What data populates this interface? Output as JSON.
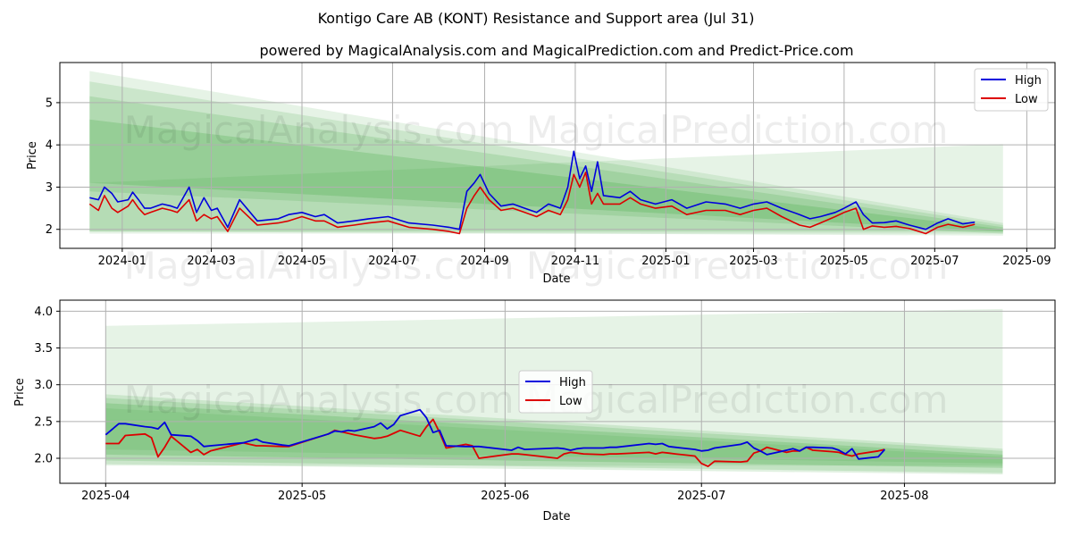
{
  "title": "Kontigo Care AB (KONT) Resistance and Support area (Jul 31)",
  "subtitle": "powered by MagicalAnalysis.com and MagicalPrediction.com and Predict-Price.com",
  "watermark": "MagicalAnalysis.com    MagicalPrediction.com",
  "colors": {
    "high": "#0000dd",
    "low": "#dd0000",
    "band": "#2e9e2e",
    "grid": "#b0b0b0"
  },
  "chart_data": [
    {
      "type": "line",
      "xlabel": "Date",
      "ylabel": "Price",
      "xlim": [
        "2023-11-20",
        "2025-09-20"
      ],
      "ylim": [
        1.55,
        5.95
      ],
      "xticks": [
        "2024-01",
        "2024-03",
        "2024-05",
        "2024-07",
        "2024-09",
        "2024-11",
        "2025-01",
        "2025-03",
        "2025-05",
        "2025-07",
        "2025-09"
      ],
      "yticks": [
        2,
        3,
        4,
        5
      ],
      "grid": true,
      "legend_position": "upper right",
      "bands": [
        {
          "x": [
            "2023-12-10",
            "2025-08-16"
          ],
          "upper": [
            5.75,
            2.15
          ],
          "lower": [
            1.95,
            1.85
          ]
        },
        {
          "x": [
            "2023-12-10",
            "2025-08-16"
          ],
          "upper": [
            5.5,
            2.1
          ],
          "lower": [
            2.9,
            1.9
          ]
        },
        {
          "x": [
            "2023-12-10",
            "2025-08-16"
          ],
          "upper": [
            5.15,
            2.05
          ],
          "lower": [
            1.95,
            1.95
          ]
        },
        {
          "x": [
            "2023-12-10",
            "2025-08-16"
          ],
          "upper": [
            4.6,
            2.0
          ],
          "lower": [
            3.1,
            1.95
          ]
        },
        {
          "x": [
            "2023-12-10",
            "2025-08-16"
          ],
          "upper": [
            3.1,
            4.02
          ],
          "lower": [
            1.9,
            1.9
          ]
        }
      ],
      "series": [
        {
          "name": "High",
          "x": [
            "2023-12-10",
            "2023-12-16",
            "2023-12-20",
            "2023-12-25",
            "2023-12-29",
            "2024-01-05",
            "2024-01-08",
            "2024-01-12",
            "2024-01-16",
            "2024-01-20",
            "2024-01-28",
            "2024-02-03",
            "2024-02-07",
            "2024-02-15",
            "2024-02-20",
            "2024-02-25",
            "2024-03-01",
            "2024-03-05",
            "2024-03-12",
            "2024-03-20",
            "2024-04-01",
            "2024-04-15",
            "2024-04-22",
            "2024-05-01",
            "2024-05-10",
            "2024-05-16",
            "2024-05-25",
            "2024-06-05",
            "2024-06-15",
            "2024-06-28",
            "2024-07-12",
            "2024-07-28",
            "2024-08-08",
            "2024-08-15",
            "2024-08-20",
            "2024-08-25",
            "2024-08-29",
            "2024-09-04",
            "2024-09-12",
            "2024-09-20",
            "2024-09-28",
            "2024-10-06",
            "2024-10-14",
            "2024-10-22",
            "2024-10-27",
            "2024-10-31",
            "2024-11-04",
            "2024-11-08",
            "2024-11-12",
            "2024-11-16",
            "2024-11-20",
            "2024-12-01",
            "2024-12-08",
            "2024-12-15",
            "2024-12-25",
            "2025-01-05",
            "2025-01-15",
            "2025-01-28",
            "2025-02-10",
            "2025-02-20",
            "2025-03-01",
            "2025-03-10",
            "2025-03-20",
            "2025-04-01",
            "2025-04-08",
            "2025-04-15",
            "2025-04-25",
            "2025-05-01",
            "2025-05-09",
            "2025-05-14",
            "2025-05-20",
            "2025-05-28",
            "2025-06-05",
            "2025-06-14",
            "2025-06-25",
            "2025-07-03",
            "2025-07-10",
            "2025-07-20",
            "2025-07-28"
          ],
          "y": [
            2.75,
            2.7,
            3.0,
            2.85,
            2.65,
            2.7,
            2.88,
            2.7,
            2.5,
            2.5,
            2.6,
            2.55,
            2.5,
            3.0,
            2.4,
            2.75,
            2.45,
            2.5,
            2.05,
            2.7,
            2.2,
            2.25,
            2.35,
            2.4,
            2.3,
            2.35,
            2.15,
            2.2,
            2.25,
            2.3,
            2.15,
            2.1,
            2.05,
            2.0,
            2.9,
            3.1,
            3.3,
            2.85,
            2.55,
            2.6,
            2.5,
            2.4,
            2.6,
            2.5,
            3.0,
            3.85,
            3.2,
            3.5,
            2.9,
            3.6,
            2.8,
            2.75,
            2.9,
            2.7,
            2.6,
            2.7,
            2.5,
            2.65,
            2.6,
            2.5,
            2.6,
            2.65,
            2.5,
            2.35,
            2.25,
            2.3,
            2.4,
            2.5,
            2.65,
            2.35,
            2.15,
            2.16,
            2.2,
            2.1,
            2.0,
            2.15,
            2.25,
            2.13,
            2.17
          ]
        },
        {
          "name": "Low",
          "x": [
            "2023-12-10",
            "2023-12-16",
            "2023-12-20",
            "2023-12-25",
            "2023-12-29",
            "2024-01-05",
            "2024-01-08",
            "2024-01-12",
            "2024-01-16",
            "2024-01-20",
            "2024-01-28",
            "2024-02-03",
            "2024-02-07",
            "2024-02-15",
            "2024-02-20",
            "2024-02-25",
            "2024-03-01",
            "2024-03-05",
            "2024-03-12",
            "2024-03-20",
            "2024-04-01",
            "2024-04-15",
            "2024-04-22",
            "2024-05-01",
            "2024-05-10",
            "2024-05-16",
            "2024-05-25",
            "2024-06-05",
            "2024-06-15",
            "2024-06-28",
            "2024-07-12",
            "2024-07-28",
            "2024-08-08",
            "2024-08-15",
            "2024-08-20",
            "2024-08-25",
            "2024-08-29",
            "2024-09-04",
            "2024-09-12",
            "2024-09-20",
            "2024-09-28",
            "2024-10-06",
            "2024-10-14",
            "2024-10-22",
            "2024-10-27",
            "2024-10-31",
            "2024-11-04",
            "2024-11-08",
            "2024-11-12",
            "2024-11-16",
            "2024-11-20",
            "2024-12-01",
            "2024-12-08",
            "2024-12-15",
            "2024-12-25",
            "2025-01-05",
            "2025-01-15",
            "2025-01-28",
            "2025-02-10",
            "2025-02-20",
            "2025-03-01",
            "2025-03-10",
            "2025-03-20",
            "2025-04-01",
            "2025-04-08",
            "2025-04-15",
            "2025-04-25",
            "2025-05-01",
            "2025-05-09",
            "2025-05-14",
            "2025-05-20",
            "2025-05-28",
            "2025-06-05",
            "2025-06-14",
            "2025-06-25",
            "2025-07-03",
            "2025-07-10",
            "2025-07-20",
            "2025-07-28"
          ],
          "y": [
            2.6,
            2.45,
            2.8,
            2.5,
            2.4,
            2.55,
            2.7,
            2.5,
            2.35,
            2.4,
            2.5,
            2.45,
            2.4,
            2.7,
            2.2,
            2.35,
            2.25,
            2.3,
            1.95,
            2.5,
            2.1,
            2.15,
            2.2,
            2.3,
            2.2,
            2.2,
            2.05,
            2.1,
            2.15,
            2.2,
            2.05,
            2.0,
            1.95,
            1.9,
            2.5,
            2.8,
            3.0,
            2.7,
            2.45,
            2.5,
            2.4,
            2.3,
            2.45,
            2.35,
            2.7,
            3.3,
            3.0,
            3.35,
            2.6,
            2.85,
            2.6,
            2.6,
            2.75,
            2.6,
            2.5,
            2.55,
            2.35,
            2.45,
            2.45,
            2.35,
            2.45,
            2.5,
            2.3,
            2.1,
            2.05,
            2.15,
            2.3,
            2.4,
            2.5,
            2.0,
            2.08,
            2.05,
            2.07,
            2.02,
            1.9,
            2.05,
            2.12,
            2.05,
            2.12
          ]
        }
      ]
    },
    {
      "type": "line",
      "xlabel": "Date",
      "ylabel": "Price",
      "xlim": [
        "2025-03-25",
        "2025-08-24"
      ],
      "ylim": [
        1.66,
        4.15
      ],
      "xticks": [
        "2025-04",
        "2025-05",
        "2025-06",
        "2025-07",
        "2025-08"
      ],
      "yticks": [
        2.0,
        2.5,
        3.0,
        3.5,
        4.0
      ],
      "grid": true,
      "legend_position": "center",
      "bands": [
        {
          "x": [
            "2025-04-01",
            "2025-08-16"
          ],
          "upper": [
            3.8,
            4.03
          ],
          "lower": [
            1.9,
            1.9
          ]
        },
        {
          "x": [
            "2025-04-01",
            "2025-08-16"
          ],
          "upper": [
            2.87,
            2.13
          ],
          "lower": [
            1.92,
            1.78
          ]
        },
        {
          "x": [
            "2025-04-01",
            "2025-08-16"
          ],
          "upper": [
            2.82,
            2.1
          ],
          "lower": [
            1.97,
            1.8
          ]
        },
        {
          "x": [
            "2025-04-01",
            "2025-08-16"
          ],
          "upper": [
            2.75,
            2.05
          ],
          "lower": [
            2.05,
            1.87
          ]
        },
        {
          "x": [
            "2025-04-01",
            "2025-08-16"
          ],
          "upper": [
            2.68,
            2.02
          ],
          "lower": [
            2.12,
            1.93
          ]
        }
      ],
      "series": [
        {
          "name": "High",
          "x": [
            "2025-04-01",
            "2025-04-03",
            "2025-04-04",
            "2025-04-07",
            "2025-04-08",
            "2025-04-09",
            "2025-04-10",
            "2025-04-11",
            "2025-04-14",
            "2025-04-15",
            "2025-04-16",
            "2025-04-17",
            "2025-04-22",
            "2025-04-24",
            "2025-04-25",
            "2025-04-28",
            "2025-04-29",
            "2025-05-05",
            "2025-05-06",
            "2025-05-07",
            "2025-05-08",
            "2025-05-09",
            "2025-05-12",
            "2025-05-13",
            "2025-05-14",
            "2025-05-15",
            "2025-05-16",
            "2025-05-19",
            "2025-05-20",
            "2025-05-21",
            "2025-05-22",
            "2025-05-23",
            "2025-05-26",
            "2025-05-27",
            "2025-05-28",
            "2025-06-02",
            "2025-06-03",
            "2025-06-04",
            "2025-06-09",
            "2025-06-10",
            "2025-06-11",
            "2025-06-12",
            "2025-06-13",
            "2025-06-16",
            "2025-06-17",
            "2025-06-18",
            "2025-06-23",
            "2025-06-24",
            "2025-06-25",
            "2025-06-26",
            "2025-06-27",
            "2025-06-30",
            "2025-07-01",
            "2025-07-02",
            "2025-07-03",
            "2025-07-07",
            "2025-07-08",
            "2025-07-09",
            "2025-07-10",
            "2025-07-11",
            "2025-07-14",
            "2025-07-15",
            "2025-07-16",
            "2025-07-17",
            "2025-07-18",
            "2025-07-21",
            "2025-07-22",
            "2025-07-23",
            "2025-07-24",
            "2025-07-25",
            "2025-07-28",
            "2025-07-29"
          ],
          "y": [
            2.32,
            2.47,
            2.47,
            2.43,
            2.42,
            2.4,
            2.49,
            2.32,
            2.3,
            2.24,
            2.16,
            2.17,
            2.21,
            2.26,
            2.22,
            2.18,
            2.17,
            2.33,
            2.37,
            2.36,
            2.38,
            2.37,
            2.43,
            2.48,
            2.4,
            2.46,
            2.58,
            2.66,
            2.55,
            2.35,
            2.38,
            2.17,
            2.16,
            2.16,
            2.16,
            2.11,
            2.15,
            2.12,
            2.14,
            2.13,
            2.11,
            2.13,
            2.14,
            2.14,
            2.15,
            2.15,
            2.2,
            2.19,
            2.2,
            2.16,
            2.15,
            2.12,
            2.1,
            2.11,
            2.14,
            2.19,
            2.22,
            2.14,
            2.1,
            2.05,
            2.11,
            2.13,
            2.1,
            2.15,
            2.15,
            2.14,
            2.11,
            2.06,
            2.13,
            1.99,
            2.02,
            2.12
          ]
        },
        {
          "name": "Low",
          "x": [
            "2025-04-01",
            "2025-04-03",
            "2025-04-04",
            "2025-04-07",
            "2025-04-08",
            "2025-04-09",
            "2025-04-10",
            "2025-04-11",
            "2025-04-14",
            "2025-04-15",
            "2025-04-16",
            "2025-04-17",
            "2025-04-22",
            "2025-04-24",
            "2025-04-25",
            "2025-04-28",
            "2025-04-29",
            "2025-05-05",
            "2025-05-06",
            "2025-05-07",
            "2025-05-08",
            "2025-05-09",
            "2025-05-12",
            "2025-05-13",
            "2025-05-14",
            "2025-05-15",
            "2025-05-16",
            "2025-05-19",
            "2025-05-20",
            "2025-05-21",
            "2025-05-22",
            "2025-05-23",
            "2025-05-26",
            "2025-05-27",
            "2025-05-28",
            "2025-06-02",
            "2025-06-03",
            "2025-06-04",
            "2025-06-09",
            "2025-06-10",
            "2025-06-11",
            "2025-06-12",
            "2025-06-13",
            "2025-06-16",
            "2025-06-17",
            "2025-06-18",
            "2025-06-23",
            "2025-06-24",
            "2025-06-25",
            "2025-06-26",
            "2025-06-27",
            "2025-06-30",
            "2025-07-01",
            "2025-07-02",
            "2025-07-03",
            "2025-07-07",
            "2025-07-08",
            "2025-07-09",
            "2025-07-10",
            "2025-07-11",
            "2025-07-14",
            "2025-07-15",
            "2025-07-16",
            "2025-07-17",
            "2025-07-18",
            "2025-07-21",
            "2025-07-22",
            "2025-07-23",
            "2025-07-24",
            "2025-07-25",
            "2025-07-28",
            "2025-07-29"
          ],
          "y": [
            2.2,
            2.2,
            2.31,
            2.33,
            2.28,
            2.02,
            2.15,
            2.3,
            2.08,
            2.12,
            2.05,
            2.1,
            2.21,
            2.17,
            2.17,
            2.16,
            2.16,
            2.33,
            2.38,
            2.36,
            2.34,
            2.32,
            2.27,
            2.28,
            2.3,
            2.34,
            2.38,
            2.3,
            2.43,
            2.53,
            2.35,
            2.14,
            2.19,
            2.17,
            2.0,
            2.06,
            2.06,
            2.05,
            2.0,
            2.06,
            2.08,
            2.07,
            2.06,
            2.05,
            2.06,
            2.06,
            2.08,
            2.06,
            2.08,
            2.07,
            2.06,
            2.03,
            1.93,
            1.89,
            1.96,
            1.95,
            1.96,
            2.07,
            2.1,
            2.15,
            2.08,
            2.1,
            2.1,
            2.15,
            2.11,
            2.09,
            2.08,
            2.05,
            2.03,
            2.06,
            2.1,
            2.12
          ]
        }
      ]
    }
  ]
}
